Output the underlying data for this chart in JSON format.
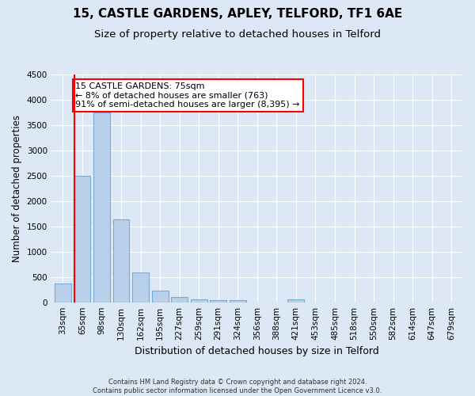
{
  "title1": "15, CASTLE GARDENS, APLEY, TELFORD, TF1 6AE",
  "title2": "Size of property relative to detached houses in Telford",
  "xlabel": "Distribution of detached houses by size in Telford",
  "ylabel": "Number of detached properties",
  "categories": [
    "33sqm",
    "65sqm",
    "98sqm",
    "130sqm",
    "162sqm",
    "195sqm",
    "227sqm",
    "259sqm",
    "291sqm",
    "324sqm",
    "356sqm",
    "388sqm",
    "421sqm",
    "453sqm",
    "485sqm",
    "518sqm",
    "550sqm",
    "582sqm",
    "614sqm",
    "647sqm",
    "679sqm"
  ],
  "values": [
    370,
    2500,
    3750,
    1640,
    590,
    230,
    105,
    65,
    40,
    35,
    0,
    0,
    60,
    0,
    0,
    0,
    0,
    0,
    0,
    0,
    0
  ],
  "bar_color": "#b8d0ea",
  "bar_edge_color": "#7aaad0",
  "bar_linewidth": 0.8,
  "red_line_bar_index": 1,
  "annotation_text": "15 CASTLE GARDENS: 75sqm\n← 8% of detached houses are smaller (763)\n91% of semi-detached houses are larger (8,395) →",
  "annotation_box_color": "white",
  "annotation_border_color": "red",
  "ylim": [
    0,
    4500
  ],
  "yticks": [
    0,
    500,
    1000,
    1500,
    2000,
    2500,
    3000,
    3500,
    4000,
    4500
  ],
  "bg_color": "#dce8f5",
  "plot_bg_color": "#dce8f5",
  "footer": "Contains HM Land Registry data © Crown copyright and database right 2024.\nContains public sector information licensed under the Open Government Licence v3.0.",
  "title1_fontsize": 11,
  "title2_fontsize": 9.5,
  "xlabel_fontsize": 9,
  "ylabel_fontsize": 8.5,
  "tick_fontsize": 7.5,
  "annotation_fontsize": 8,
  "footer_fontsize": 6
}
